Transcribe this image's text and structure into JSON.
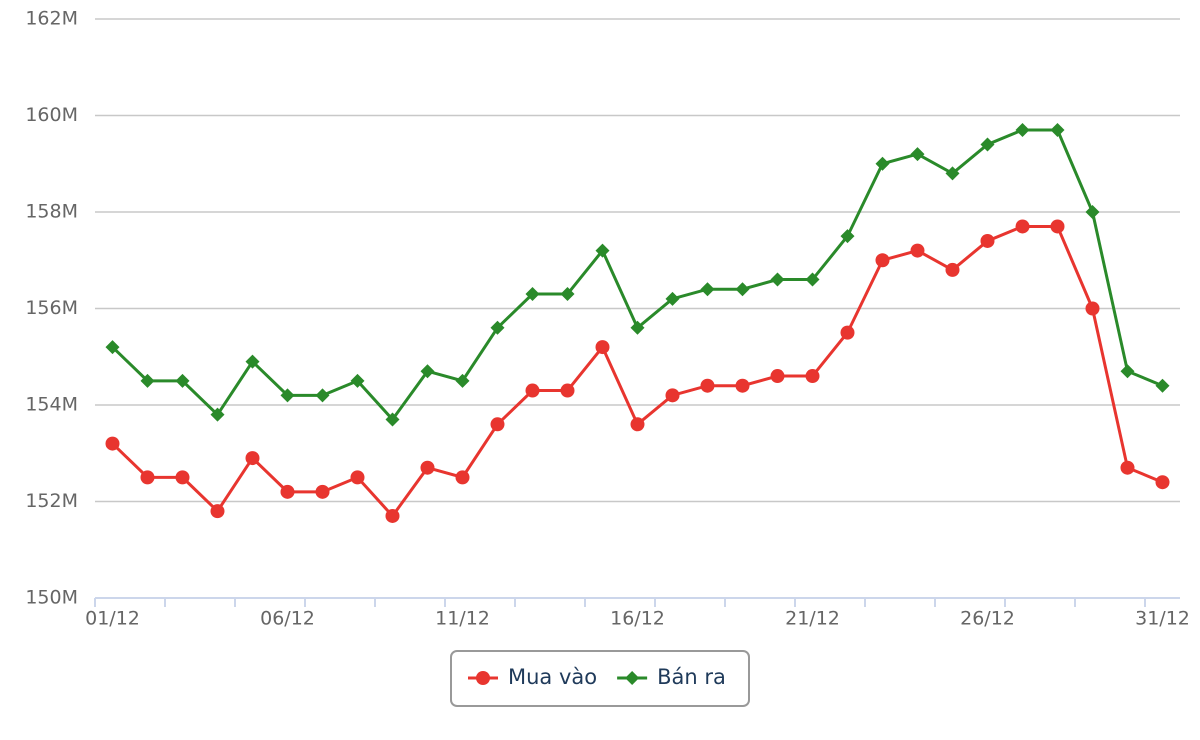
{
  "chart_data": {
    "type": "line",
    "categories": [
      "01/12",
      null,
      null,
      null,
      null,
      "06/12",
      null,
      null,
      null,
      null,
      "11/12",
      null,
      null,
      null,
      null,
      "16/12",
      null,
      null,
      null,
      null,
      "21/12",
      null,
      null,
      null,
      null,
      "26/12",
      null,
      null,
      null,
      null,
      "31/12"
    ],
    "series": [
      {
        "name": "Mua vào",
        "color": "#e8352f",
        "marker": "circle",
        "values": [
          153.2,
          152.5,
          152.5,
          151.8,
          152.9,
          152.2,
          152.2,
          152.5,
          151.7,
          152.7,
          152.5,
          153.6,
          154.3,
          154.3,
          155.2,
          153.6,
          154.2,
          154.4,
          154.4,
          154.6,
          154.6,
          155.5,
          157.0,
          157.2,
          156.8,
          157.4,
          157.7,
          157.7,
          156.0,
          152.7,
          152.4
        ]
      },
      {
        "name": "Bán ra",
        "color": "#2a8a2a",
        "marker": "diamond",
        "values": [
          155.2,
          154.5,
          154.5,
          153.8,
          154.9,
          154.2,
          154.2,
          154.5,
          153.7,
          154.7,
          154.5,
          155.6,
          156.3,
          156.3,
          157.2,
          155.6,
          156.2,
          156.4,
          156.4,
          156.6,
          156.6,
          157.5,
          159.0,
          159.2,
          158.8,
          159.4,
          159.7,
          159.7,
          158.0,
          154.7,
          154.4
        ]
      }
    ],
    "ylim": [
      150,
      162
    ],
    "yticks": [
      {
        "value": 150,
        "label": "150M"
      },
      {
        "value": 152,
        "label": "152M"
      },
      {
        "value": 154,
        "label": "154M"
      },
      {
        "value": 156,
        "label": "156M"
      },
      {
        "value": 158,
        "label": "158M"
      },
      {
        "value": 160,
        "label": "160M"
      },
      {
        "value": 162,
        "label": "162M"
      }
    ],
    "grid": true,
    "legend": "bottom"
  }
}
